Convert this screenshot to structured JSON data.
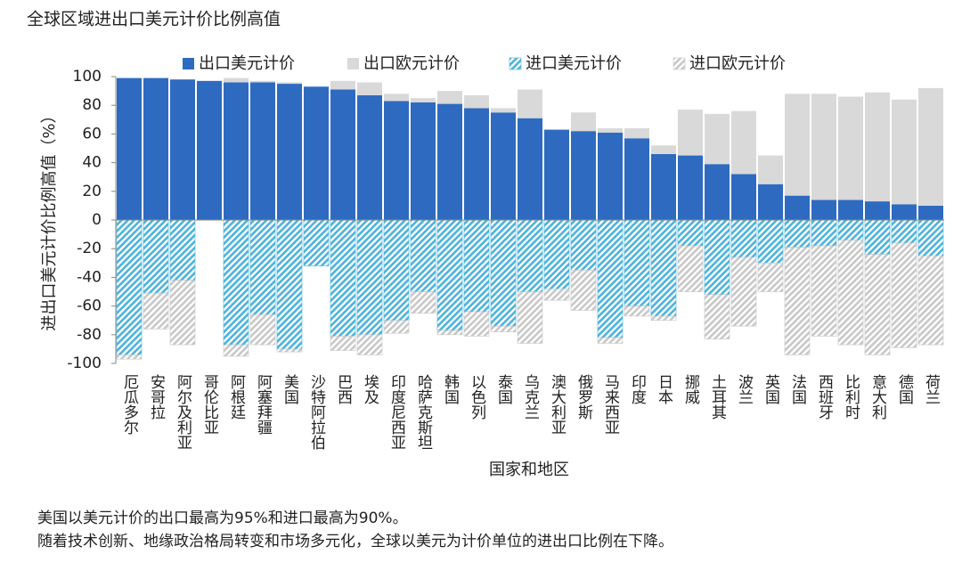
{
  "chart_data": {
    "type": "bar",
    "stacked": true,
    "title": "全球区域进出口美元计价比例高值",
    "ylabel": "进出口美元计价比例高值（%）",
    "xlabel": "国家和地区",
    "annotations": [
      "美国以美元计价的出口最高为95%和进口最高为90%。",
      "随着技术创新、地缘政治格局转变和市场多元化，全球以美元为计价单位的进出口比例在下降。"
    ],
    "categories": [
      "厄瓜多尔",
      "安哥拉",
      "阿尔及利亚",
      "哥伦比亚",
      "阿根廷",
      "阿塞拜疆",
      "美国",
      "沙特阿拉伯",
      "巴西",
      "埃及",
      "印度尼西亚",
      "哈萨克斯坦",
      "韩国",
      "以色列",
      "泰国",
      "乌克兰",
      "澳大利亚",
      "俄罗斯",
      "马来西亚",
      "印度",
      "日本",
      "挪威",
      "土耳其",
      "波兰",
      "英国",
      "法国",
      "西班牙",
      "比利时",
      "意大利",
      "德国",
      "荷兰"
    ],
    "series": [
      {
        "name": "出口美元计价",
        "color": "#2e6bc0",
        "hatch": false,
        "values": [
          99,
          99,
          98,
          97,
          96,
          96,
          95,
          93,
          91,
          87,
          83,
          82,
          81,
          78,
          75,
          71,
          63,
          62,
          61,
          57,
          46,
          45,
          39,
          32,
          25,
          17,
          14,
          14,
          13,
          11,
          10
        ]
      },
      {
        "name": "出口欧元计价",
        "color": "#d9d9d9",
        "hatch": false,
        "values": [
          0,
          0,
          0,
          0,
          3,
          1,
          1,
          0,
          6,
          9,
          5,
          3,
          9,
          9,
          3,
          20,
          0,
          13,
          3,
          7,
          6,
          32,
          35,
          44,
          20,
          71,
          74,
          72,
          76,
          73,
          82
        ]
      },
      {
        "name": "进口美元计价",
        "color": "#4bb3dd",
        "hatch": true,
        "values": [
          -94,
          -51,
          -42,
          0,
          -87,
          -66,
          -90,
          -32,
          -81,
          -80,
          -70,
          -50,
          -77,
          -64,
          -74,
          -50,
          -48,
          -35,
          -82,
          -60,
          -67,
          -18,
          -52,
          -26,
          -30,
          -19,
          -18,
          -14,
          -24,
          -16,
          -25
        ]
      },
      {
        "name": "进口欧元计价",
        "color": "#c8c8c8",
        "hatch": true,
        "values": [
          -3,
          -25,
          -45,
          0,
          -8,
          -21,
          -2,
          0,
          -10,
          -14,
          -9,
          -15,
          -3,
          -17,
          -4,
          -36,
          -8,
          -28,
          -4,
          -7,
          -3,
          -32,
          -31,
          -48,
          -20,
          -75,
          -63,
          -73,
          -70,
          -73,
          -62
        ]
      }
    ],
    "ylim": [
      -100,
      100
    ],
    "yticks": [
      100,
      80,
      60,
      40,
      20,
      0,
      -20,
      -40,
      -60,
      -80,
      -100
    ],
    "grid": false,
    "legend": "top"
  }
}
